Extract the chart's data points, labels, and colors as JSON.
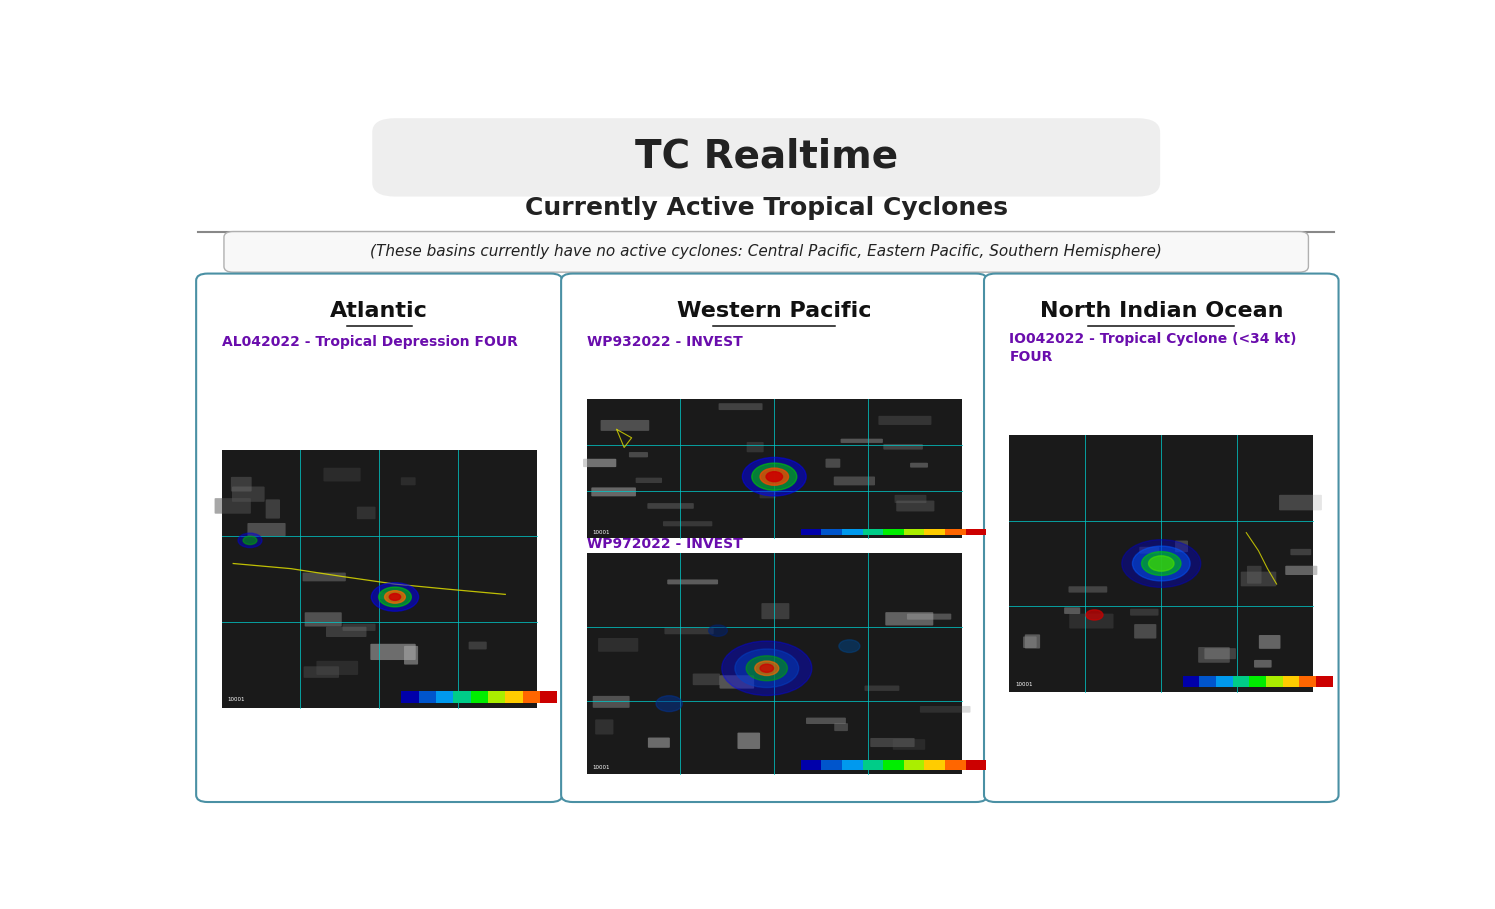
{
  "title": "TC Realtime",
  "subtitle": "Currently Active Tropical Cyclones",
  "no_active_note": "(These basins currently have no active cyclones: Central Pacific, Eastern Pacific, Southern Hemisphere)",
  "bg_color": "#ffffff",
  "title_bg_color": "#eeeeee",
  "panel_border_color": "#4a90a4",
  "note_border_color": "#b0b0b0",
  "panels": [
    {
      "title": "Atlantic",
      "storms": [
        {
          "label": "AL042022 - Tropical Depression FOUR",
          "label_color": "#6a0dad",
          "storm_type": "atlantic"
        }
      ]
    },
    {
      "title": "Western Pacific",
      "storms": [
        {
          "label": "WP932022 - INVEST",
          "label_color": "#6a0dad",
          "storm_type": "wp93"
        },
        {
          "label": "WP972022 - INVEST",
          "label_color": "#6a0dad",
          "storm_type": "wp97"
        }
      ]
    },
    {
      "title": "North Indian Ocean",
      "storms": [
        {
          "label": "IO042022 - Tropical Cyclone (<34 kt)",
          "label2": "FOUR",
          "label_color": "#6a0dad",
          "storm_type": "io04"
        }
      ]
    }
  ]
}
